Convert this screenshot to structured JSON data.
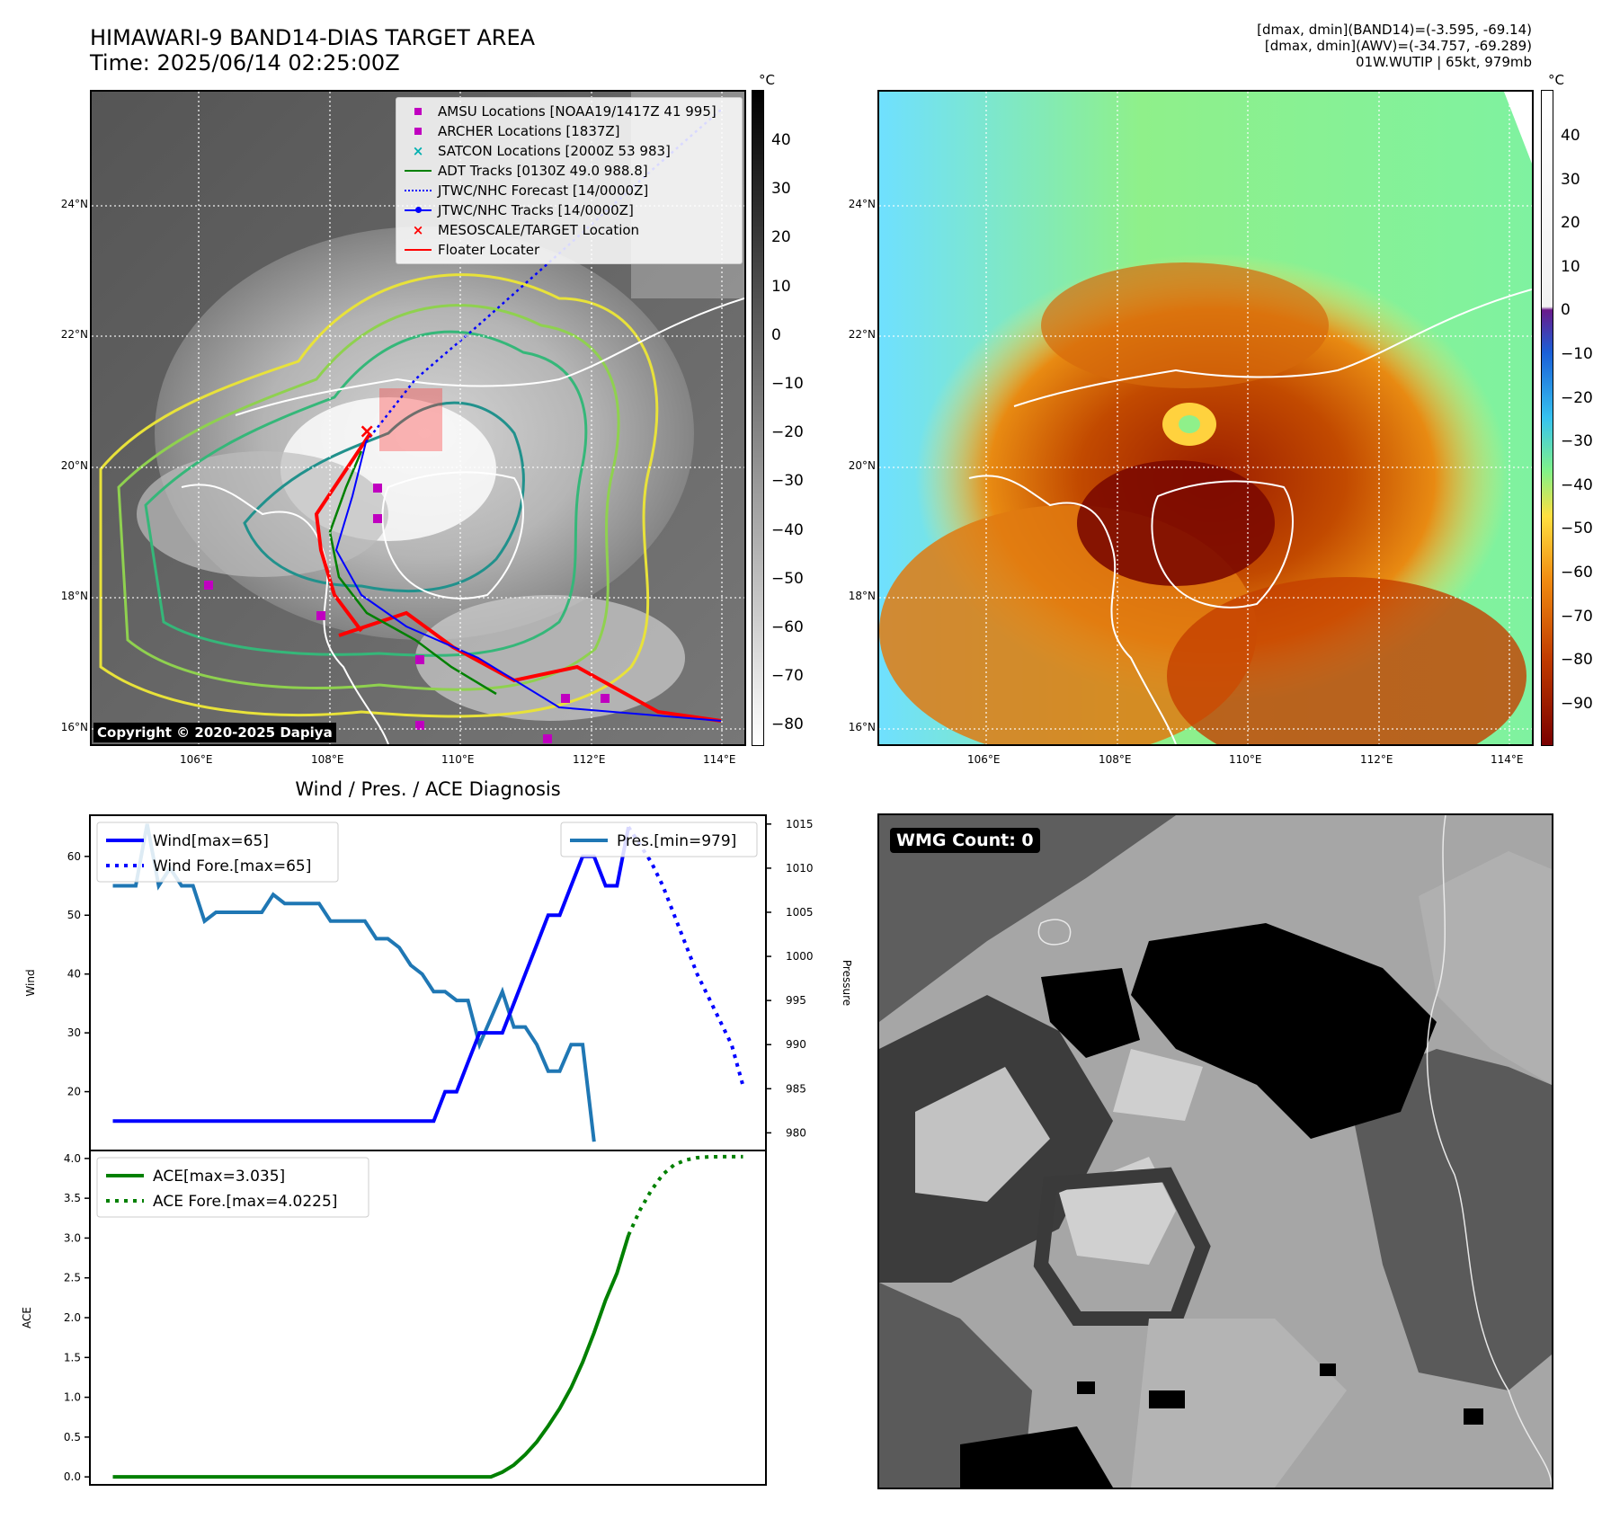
{
  "header": {
    "title_line1": "HIMAWARI-9 BAND14-DIAS TARGET AREA",
    "title_line2": "Time: 2025/06/14 02:25:00Z",
    "info_line1": "[dmax, dmin](BAND14)=(-3.595, -69.14)",
    "info_line2": "[dmax, dmin](AWV)=(-34.757, -69.289)",
    "info_line3": "01W.WUTIP | 65kt, 979mb"
  },
  "map_common": {
    "lat_ticks": [
      "24°N",
      "22°N",
      "20°N",
      "18°N",
      "16°N"
    ],
    "lon_ticks": [
      "106°E",
      "108°E",
      "110°E",
      "112°E",
      "114°E"
    ],
    "colorbar_unit": "°C"
  },
  "map_left": {
    "colorbar_ticks": [
      "40",
      "30",
      "20",
      "10",
      "0",
      "−10",
      "−20",
      "−30",
      "−40",
      "−50",
      "−60",
      "−70",
      "−80"
    ],
    "copyright": "Copyright © 2020-2025 Dapiya",
    "legend": [
      {
        "label": "AMSU Locations [NOAA19/1417Z 41 995]",
        "color": "#c000c0",
        "symbol": "square"
      },
      {
        "label": "ARCHER Locations [1837Z]",
        "color": "#c000c0",
        "symbol": "square"
      },
      {
        "label": "SATCON Locations [2000Z 53 983]",
        "color": "#00b0b0",
        "symbol": "x"
      },
      {
        "label": "ADT Tracks [0130Z 49.0 988.8]",
        "color": "#008000",
        "symbol": "line"
      },
      {
        "label": "JTWC/NHC Forecast [14/0000Z]",
        "color": "#0000ff",
        "symbol": "dotted"
      },
      {
        "label": "JTWC/NHC Tracks [14/0000Z]",
        "color": "#0000ff",
        "symbol": "line-dot"
      },
      {
        "label": "MESOSCALE/TARGET Location",
        "color": "#ff0000",
        "symbol": "x"
      },
      {
        "label": "Floater Locater",
        "color": "#ff0000",
        "symbol": "line"
      }
    ]
  },
  "map_right": {
    "colorbar_ticks": [
      "40",
      "30",
      "20",
      "10",
      "0",
      "−10",
      "−20",
      "−30",
      "−40",
      "−50",
      "−60",
      "−70",
      "−80",
      "−90"
    ]
  },
  "wmg": {
    "label": "WMG Count: 0"
  },
  "chart_data": [
    {
      "type": "line",
      "title": "Wind / Pres. / ACE Diagnosis",
      "ylabel": "Wind",
      "ylabel_right": "Pressure",
      "ylim": [
        10,
        67
      ],
      "ylim_right": [
        978,
        1016
      ],
      "yticks": [
        20,
        30,
        40,
        50,
        60
      ],
      "yticks_right": [
        980,
        985,
        990,
        995,
        1000,
        1005,
        1010,
        1015
      ],
      "x": [
        0,
        1,
        2,
        3,
        4,
        5,
        6,
        7,
        8,
        9,
        10,
        11,
        12,
        13,
        14,
        15,
        16,
        17,
        18,
        19,
        20,
        21,
        22,
        23,
        24,
        25,
        26,
        27,
        28,
        29,
        30,
        31,
        32,
        33,
        34,
        35,
        36,
        37,
        38,
        39,
        40,
        41,
        42,
        43,
        44,
        45,
        46,
        47,
        48,
        49,
        50,
        51,
        52,
        53,
        54,
        55
      ],
      "series": [
        {
          "name": "Wind[max=65]",
          "color": "#0000ff",
          "style": "solid",
          "x": [
            0,
            1,
            2,
            3,
            4,
            5,
            6,
            7,
            8,
            9,
            10,
            11,
            12,
            13,
            14,
            15,
            16,
            17,
            18,
            19,
            20,
            21,
            22,
            23,
            24,
            25,
            26,
            27,
            28,
            29,
            30,
            31,
            32,
            33,
            34,
            35,
            36,
            37,
            38,
            39,
            40,
            41,
            42,
            43,
            44,
            45,
            46,
            47,
            48,
            49,
            50
          ],
          "values": [
            15,
            15,
            15,
            15,
            15,
            15,
            15,
            15,
            15,
            15,
            15,
            15,
            15,
            15,
            15,
            15,
            15,
            15,
            15,
            15,
            15,
            15,
            15,
            15,
            15,
            15,
            15,
            15,
            15,
            20,
            20,
            25,
            30,
            30,
            30,
            35,
            40,
            45,
            50,
            50,
            55,
            60,
            60,
            55,
            55,
            65,
            null,
            null,
            null,
            null,
            null
          ]
        },
        {
          "name": "Wind Fore.[max=65]",
          "color": "#0000ff",
          "style": "dotted",
          "x": [
            45,
            46,
            47,
            48,
            49,
            50,
            51,
            52,
            53,
            54,
            55
          ],
          "values": [
            65,
            62,
            59,
            55,
            50,
            45,
            40,
            36,
            32,
            28,
            21
          ]
        },
        {
          "name": "Pres.[min=979]",
          "color": "#1f77b4",
          "style": "solid",
          "x": [
            0,
            1,
            2,
            3,
            4,
            5,
            6,
            7,
            8,
            9,
            10,
            11,
            12,
            13,
            14,
            15,
            16,
            17,
            18,
            19,
            20,
            21,
            22,
            23,
            24,
            25,
            26,
            27,
            28,
            29,
            30,
            31,
            32,
            33,
            34,
            35,
            36,
            37,
            38,
            39,
            40,
            41,
            42,
            43,
            44,
            45
          ],
          "values": [
            1008,
            1008,
            1008,
            1015,
            1008,
            1010,
            1008,
            1008,
            1004,
            1005,
            1005,
            1005,
            1005,
            1005,
            1007,
            1006,
            1006,
            1006,
            1006,
            1004,
            1004,
            1004,
            1004,
            1002,
            1002,
            1001,
            999,
            998,
            996,
            996,
            995,
            995,
            990,
            993,
            996,
            992,
            992,
            990,
            987,
            987,
            990,
            990,
            979,
            null,
            null,
            null
          ]
        }
      ]
    },
    {
      "type": "line",
      "ylabel": "ACE",
      "ylim": [
        -0.1,
        4.1
      ],
      "yticks": [
        0.0,
        0.5,
        1.0,
        1.5,
        2.0,
        2.5,
        3.0,
        3.5,
        4.0
      ],
      "series": [
        {
          "name": "ACE[max=3.035]",
          "color": "#008000",
          "style": "solid",
          "x": [
            0,
            5,
            10,
            15,
            20,
            25,
            30,
            33,
            34,
            35,
            36,
            37,
            38,
            39,
            40,
            41,
            42,
            43,
            44,
            45
          ],
          "values": [
            0,
            0,
            0,
            0,
            0,
            0,
            0,
            0,
            0.06,
            0.15,
            0.28,
            0.44,
            0.64,
            0.86,
            1.12,
            1.44,
            1.81,
            2.22,
            2.56,
            3.035
          ]
        },
        {
          "name": "ACE Fore.[max=4.0225]",
          "color": "#008000",
          "style": "dotted",
          "x": [
            45,
            46,
            47,
            48,
            49,
            50,
            51,
            52,
            53,
            54,
            55
          ],
          "values": [
            3.035,
            3.35,
            3.6,
            3.8,
            3.92,
            3.98,
            4.01,
            4.02,
            4.0225,
            4.0225,
            4.0225
          ]
        }
      ]
    }
  ]
}
